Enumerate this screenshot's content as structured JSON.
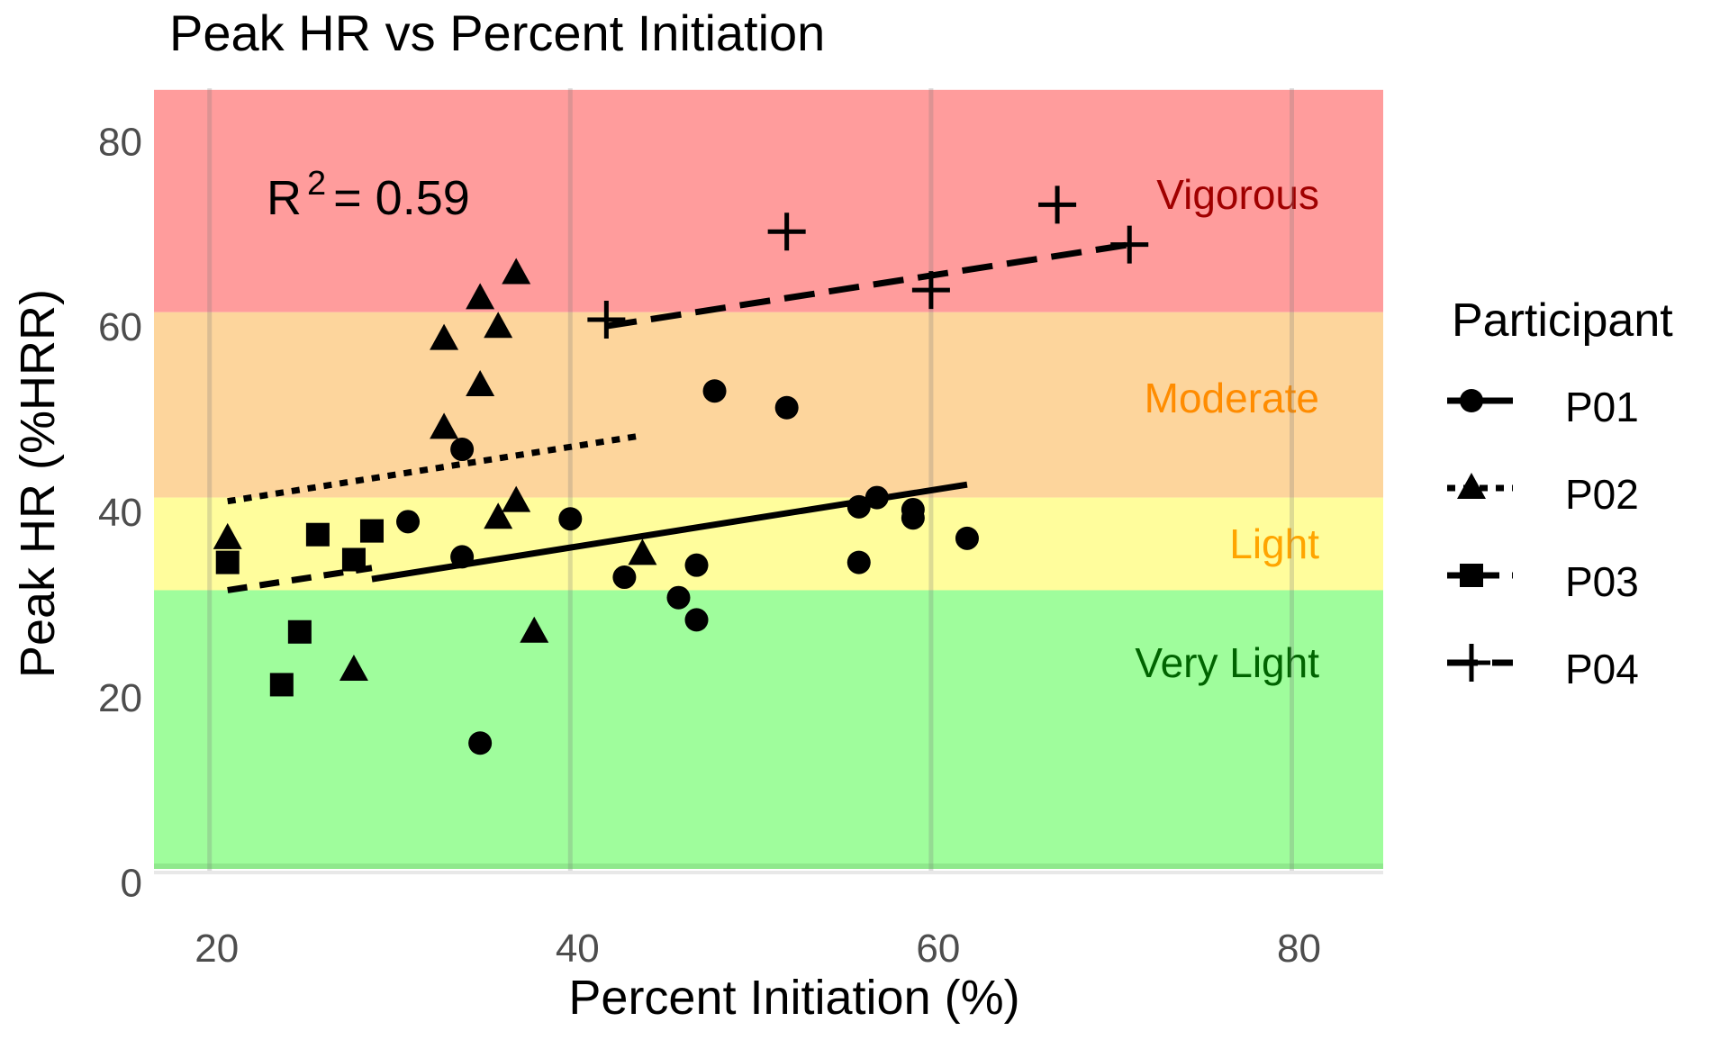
{
  "chart_data": {
    "type": "scatter",
    "title": "Peak HR vs Percent Initiation",
    "xlabel": "Percent Initiation (%)",
    "ylabel": "Peak HR (%HRR)",
    "xlim": [
      17,
      85
    ],
    "ylim": [
      0,
      85
    ],
    "xticks": [
      20,
      40,
      60,
      80
    ],
    "yticks": [
      0,
      20,
      40,
      60,
      80
    ],
    "grid": true,
    "annotation": {
      "text": "R",
      "superscript": "2",
      "rest": "= 0.59"
    },
    "zones": [
      {
        "label": "Vigorous",
        "from": 61.5,
        "to": 85.5,
        "fill": "#ff9c9c",
        "text_color": "#a00000"
      },
      {
        "label": "Moderate",
        "from": 41.5,
        "to": 61.5,
        "fill": "#fdd59c",
        "text_color": "#ff8c00"
      },
      {
        "label": "Light",
        "from": 31.5,
        "to": 41.5,
        "fill": "#fffd9c",
        "text_color": "#ffa500"
      },
      {
        "label": "Very Light",
        "from": 1.5,
        "to": 31.5,
        "fill": "#9ffd9c",
        "text_color": "#006400"
      }
    ],
    "legend": {
      "title": "Participant",
      "placement": "right"
    },
    "series": [
      {
        "name": "P01",
        "marker": "circle",
        "linetype": "solid",
        "x": [
          31,
          34,
          34,
          35,
          40,
          43,
          46,
          47,
          47,
          48,
          52,
          56,
          56,
          57,
          59,
          59,
          62
        ],
        "y": [
          38.9,
          46.7,
          35.1,
          15,
          39.2,
          32.9,
          30.7,
          34.2,
          28.3,
          53,
          51.2,
          40.5,
          34.5,
          41.5,
          40.2,
          39.3,
          37.1
        ],
        "fit": {
          "x": [
            29,
            62
          ],
          "y": [
            32.7,
            42.9
          ]
        }
      },
      {
        "name": "P02",
        "marker": "triangle",
        "linetype": "dotted",
        "x": [
          21,
          28,
          33,
          33,
          35,
          35,
          36,
          36,
          37,
          37,
          38,
          44
        ],
        "y": [
          37.1,
          22.9,
          58.6,
          49,
          63,
          53.6,
          59.9,
          39.3,
          65.7,
          41.1,
          27,
          35.4
        ],
        "fit": {
          "x": [
            21,
            44
          ],
          "y": [
            41.1,
            48.2
          ]
        }
      },
      {
        "name": "P03",
        "marker": "square",
        "linetype": "dashed",
        "x": [
          21,
          24,
          25,
          26,
          28,
          29
        ],
        "y": [
          34.5,
          21.3,
          27,
          37.5,
          34.8,
          37.9
        ],
        "fit": {
          "x": [
            21,
            29
          ],
          "y": [
            31.5,
            33.9
          ]
        }
      },
      {
        "name": "P04",
        "marker": "plus",
        "linetype": "longdash",
        "x": [
          42,
          52,
          60,
          67,
          71
        ],
        "y": [
          60.7,
          70.2,
          63.9,
          73.1,
          68.8
        ],
        "fit": {
          "x": [
            42,
            71
          ],
          "y": [
            60,
            68.8
          ]
        }
      }
    ]
  }
}
